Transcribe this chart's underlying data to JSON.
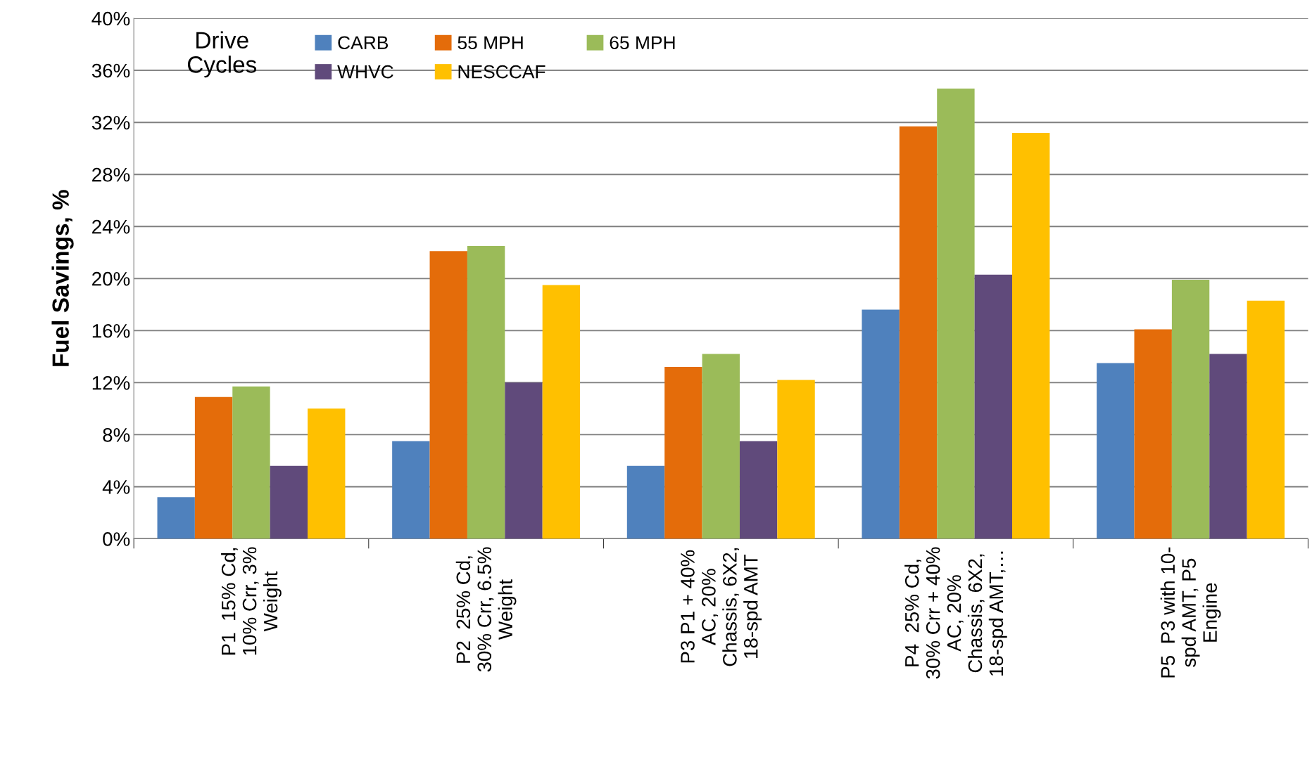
{
  "chart_data": {
    "type": "bar",
    "ylabel": "Fuel Savings, %",
    "legend_title": "Drive\nCycles",
    "categories": [
      "P1  15% Cd,\n10% Crr, 3%\nWeight",
      "P2  25% Cd,\n30% Crr, 6.5%\nWeight",
      "P3 P1 + 40%\nAC, 20%\nChassis, 6X2,\n18-spd AMT",
      "P4  25% Cd,\n30% Crr + 40%\nAC, 20%\nChassis, 6X2,\n18-spd AMT,…",
      "P5  P3 with 10-\nspd AMT, P5\nEngine"
    ],
    "series": [
      {
        "name": "CARB",
        "color": "#4f81bd",
        "values": [
          3.2,
          7.5,
          5.6,
          17.6,
          13.5
        ]
      },
      {
        "name": "55 MPH",
        "color": "#e46c0a",
        "values": [
          10.9,
          22.1,
          13.2,
          31.7,
          16.1
        ]
      },
      {
        "name": "65 MPH",
        "color": "#9bbb59",
        "values": [
          11.7,
          22.5,
          14.2,
          34.6,
          19.9
        ]
      },
      {
        "name": "WHVC",
        "color": "#604a7b",
        "values": [
          5.6,
          12.0,
          7.5,
          20.3,
          14.2
        ]
      },
      {
        "name": "NESCCAF",
        "color": "#ffc000",
        "values": [
          10.0,
          19.5,
          12.2,
          31.2,
          18.3
        ]
      }
    ],
    "ylim": [
      0,
      40
    ],
    "yticks": [
      {
        "value": 0,
        "label": "0%"
      },
      {
        "value": 4,
        "label": "4%"
      },
      {
        "value": 8,
        "label": "8%"
      },
      {
        "value": 12,
        "label": "12%"
      },
      {
        "value": 16,
        "label": "16%"
      },
      {
        "value": 20,
        "label": "20%"
      },
      {
        "value": 24,
        "label": "24%"
      },
      {
        "value": 28,
        "label": "28%"
      },
      {
        "value": 32,
        "label": "32%"
      },
      {
        "value": 36,
        "label": "36%"
      },
      {
        "value": 40,
        "label": "40%"
      }
    ],
    "grid": "y",
    "legend": "top left"
  }
}
